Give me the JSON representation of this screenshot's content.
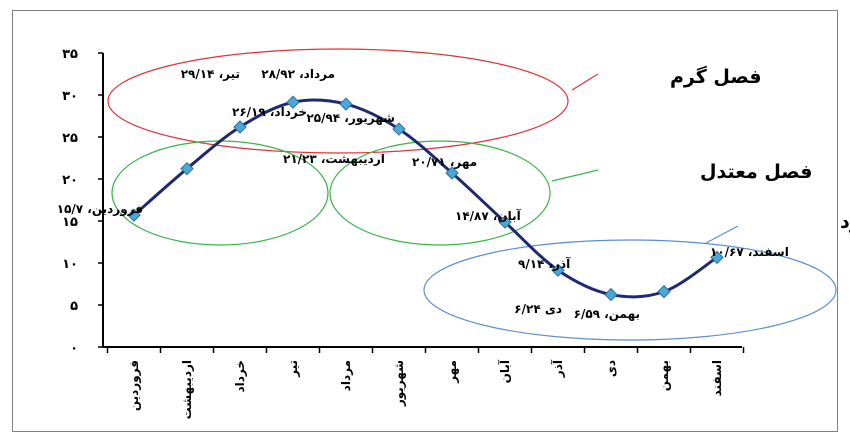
{
  "chart_data": {
    "type": "line",
    "categories": [
      "فروردین",
      "اردیبهشت",
      "خرداد",
      "تیر",
      "مرداد",
      "شهریور",
      "مهر",
      "آبان",
      "آذر",
      "دی",
      "بهمن",
      "اسفند"
    ],
    "series": [
      {
        "values": [
          15.7,
          21.23,
          26.19,
          29.14,
          28.92,
          25.94,
          20.71,
          14.87,
          9.14,
          6.24,
          6.59,
          10.67
        ]
      }
    ],
    "data_labels": [
      "فروردین، ۱۵/۷",
      "اردیبهشت، ۲۱/۲۳",
      "خرداد، ۲۶/۱۹",
      "تیر، ۲۹/۱۴",
      "مرداد، ۲۸/۹۲",
      "شهریور، ۲۵/۹۴",
      "مهر، ۲۰/۷۱",
      "آبان، ۱۴/۸۷",
      "آذر، ۹/۱۴",
      "دی ۶/۲۴",
      "بهمن، ۶/۵۹",
      "اسفند، ۱۰/۶۷"
    ],
    "y_ticks": [
      "۰",
      "۵",
      "۱۰",
      "۱۵",
      "۲۰",
      "۲۵",
      "۳۰",
      "۳۵"
    ],
    "ylim": [
      0,
      35
    ],
    "grid": false,
    "line_color": "#1f2a6e",
    "marker_color": "#4aa8d8",
    "annotations": [
      {
        "text": "فصل گرم",
        "color": "#e0333a"
      },
      {
        "text": "فصل معتدل",
        "color": "#3cb34a"
      },
      {
        "text": "فصل سرد",
        "color": "#5b8fd0"
      }
    ]
  }
}
